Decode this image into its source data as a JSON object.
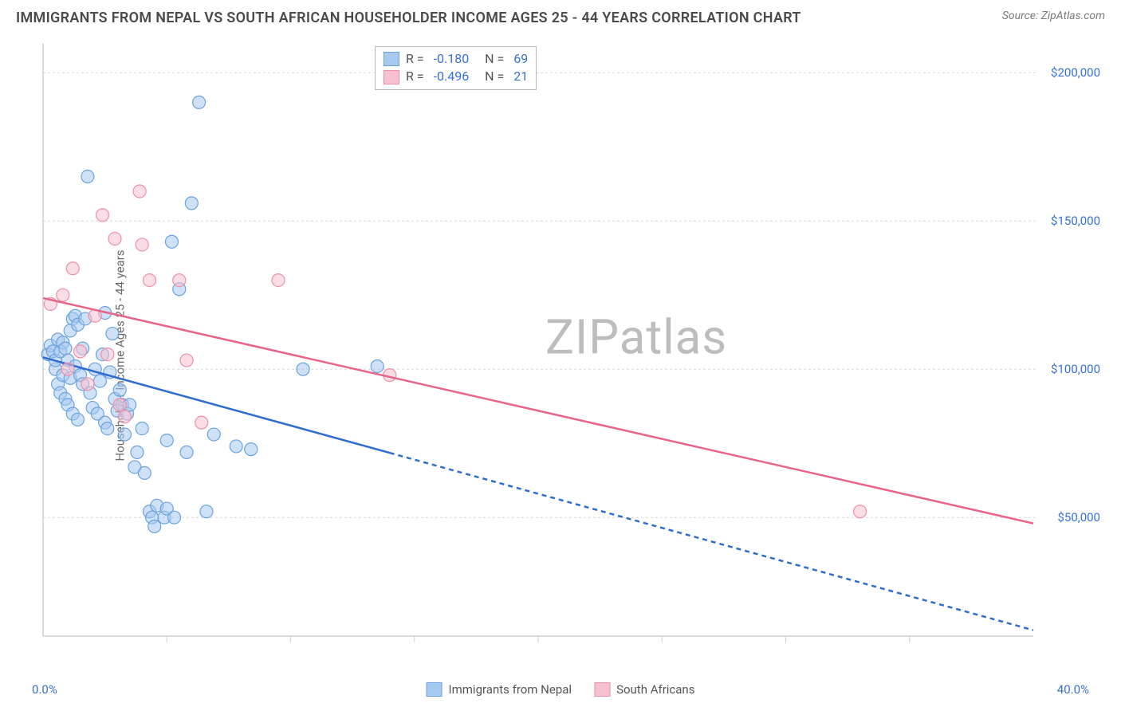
{
  "header": {
    "title": "IMMIGRANTS FROM NEPAL VS SOUTH AFRICAN HOUSEHOLDER INCOME AGES 25 - 44 YEARS CORRELATION CHART",
    "source": "Source: ZipAtlas.com"
  },
  "chart": {
    "type": "scatter",
    "ylabel": "Householder Income Ages 25 - 44 years",
    "watermark": "ZIPatlas",
    "xlim": [
      0,
      40
    ],
    "ylim": [
      10000,
      210000
    ],
    "xtick_major": [
      0,
      40
    ],
    "xtick_minor": [
      5,
      10,
      15,
      20,
      25,
      30,
      35
    ],
    "xtick_labels": [
      "0.0%",
      "40.0%"
    ],
    "yticks": [
      50000,
      100000,
      150000,
      200000
    ],
    "ytick_labels": [
      "$50,000",
      "$100,000",
      "$150,000",
      "$200,000"
    ],
    "grid_color": "#d8d8d8",
    "background_color": "#ffffff",
    "marker_radius": 8,
    "series": [
      {
        "name": "Immigrants from Nepal",
        "label": "Immigrants from Nepal",
        "color": "#a6c9ef",
        "stroke": "#6ba3e0",
        "R": "-0.180",
        "N": "69",
        "regression": {
          "x1": 0,
          "y1": 104000,
          "x2": 40,
          "y2": 12000,
          "solid_until_x": 14,
          "line_color": "#2f6ccf"
        },
        "points": [
          [
            0.2,
            105000
          ],
          [
            0.3,
            108000
          ],
          [
            0.4,
            106000
          ],
          [
            0.5,
            100000
          ],
          [
            0.5,
            103000
          ],
          [
            0.6,
            95000
          ],
          [
            0.6,
            110000
          ],
          [
            0.7,
            106000
          ],
          [
            0.7,
            92000
          ],
          [
            0.8,
            109000
          ],
          [
            0.8,
            98000
          ],
          [
            0.9,
            90000
          ],
          [
            0.9,
            107000
          ],
          [
            1.0,
            103000
          ],
          [
            1.0,
            88000
          ],
          [
            1.1,
            113000
          ],
          [
            1.1,
            97000
          ],
          [
            1.2,
            117000
          ],
          [
            1.2,
            85000
          ],
          [
            1.3,
            118000
          ],
          [
            1.3,
            101000
          ],
          [
            1.4,
            115000
          ],
          [
            1.4,
            83000
          ],
          [
            1.5,
            98000
          ],
          [
            1.6,
            95000
          ],
          [
            1.6,
            107000
          ],
          [
            1.7,
            117000
          ],
          [
            1.8,
            165000
          ],
          [
            1.9,
            92000
          ],
          [
            2.0,
            87000
          ],
          [
            2.1,
            100000
          ],
          [
            2.2,
            85000
          ],
          [
            2.3,
            96000
          ],
          [
            2.4,
            105000
          ],
          [
            2.5,
            119000
          ],
          [
            2.5,
            82000
          ],
          [
            2.6,
            80000
          ],
          [
            2.7,
            99000
          ],
          [
            2.8,
            112000
          ],
          [
            2.9,
            90000
          ],
          [
            3.0,
            86000
          ],
          [
            3.1,
            93000
          ],
          [
            3.2,
            88000
          ],
          [
            3.3,
            78000
          ],
          [
            3.4,
            85000
          ],
          [
            3.5,
            88000
          ],
          [
            3.7,
            67000
          ],
          [
            3.8,
            72000
          ],
          [
            4.0,
            80000
          ],
          [
            4.1,
            65000
          ],
          [
            4.3,
            52000
          ],
          [
            4.4,
            50000
          ],
          [
            4.5,
            47000
          ],
          [
            4.6,
            54000
          ],
          [
            4.9,
            50000
          ],
          [
            5.0,
            53000
          ],
          [
            5.0,
            76000
          ],
          [
            5.2,
            143000
          ],
          [
            5.3,
            50000
          ],
          [
            5.5,
            127000
          ],
          [
            5.8,
            72000
          ],
          [
            6.0,
            156000
          ],
          [
            6.3,
            190000
          ],
          [
            6.6,
            52000
          ],
          [
            6.9,
            78000
          ],
          [
            7.8,
            74000
          ],
          [
            8.4,
            73000
          ],
          [
            10.5,
            100000
          ],
          [
            13.5,
            101000
          ]
        ]
      },
      {
        "name": "South Africans",
        "label": "South Africans",
        "color": "#f7c1d0",
        "stroke": "#ef8fa9",
        "R": "-0.496",
        "N": "21",
        "regression": {
          "x1": 0,
          "y1": 124000,
          "x2": 40,
          "y2": 48000,
          "solid_until_x": 40,
          "line_color": "#e86488"
        },
        "points": [
          [
            0.3,
            122000
          ],
          [
            0.8,
            125000
          ],
          [
            1.0,
            100000
          ],
          [
            1.2,
            134000
          ],
          [
            1.5,
            106000
          ],
          [
            1.8,
            95000
          ],
          [
            2.1,
            118000
          ],
          [
            2.4,
            152000
          ],
          [
            2.6,
            105000
          ],
          [
            2.9,
            144000
          ],
          [
            3.1,
            88000
          ],
          [
            3.3,
            84000
          ],
          [
            3.9,
            160000
          ],
          [
            4.0,
            142000
          ],
          [
            4.3,
            130000
          ],
          [
            5.5,
            130000
          ],
          [
            5.8,
            103000
          ],
          [
            6.4,
            82000
          ],
          [
            9.5,
            130000
          ],
          [
            14.0,
            98000
          ],
          [
            33.0,
            52000
          ]
        ]
      }
    ]
  },
  "legend_top": {
    "rows": [
      {
        "series": 0,
        "R_label": "R =",
        "N_label": "N ="
      },
      {
        "series": 1,
        "R_label": "R =",
        "N_label": "N ="
      }
    ]
  }
}
